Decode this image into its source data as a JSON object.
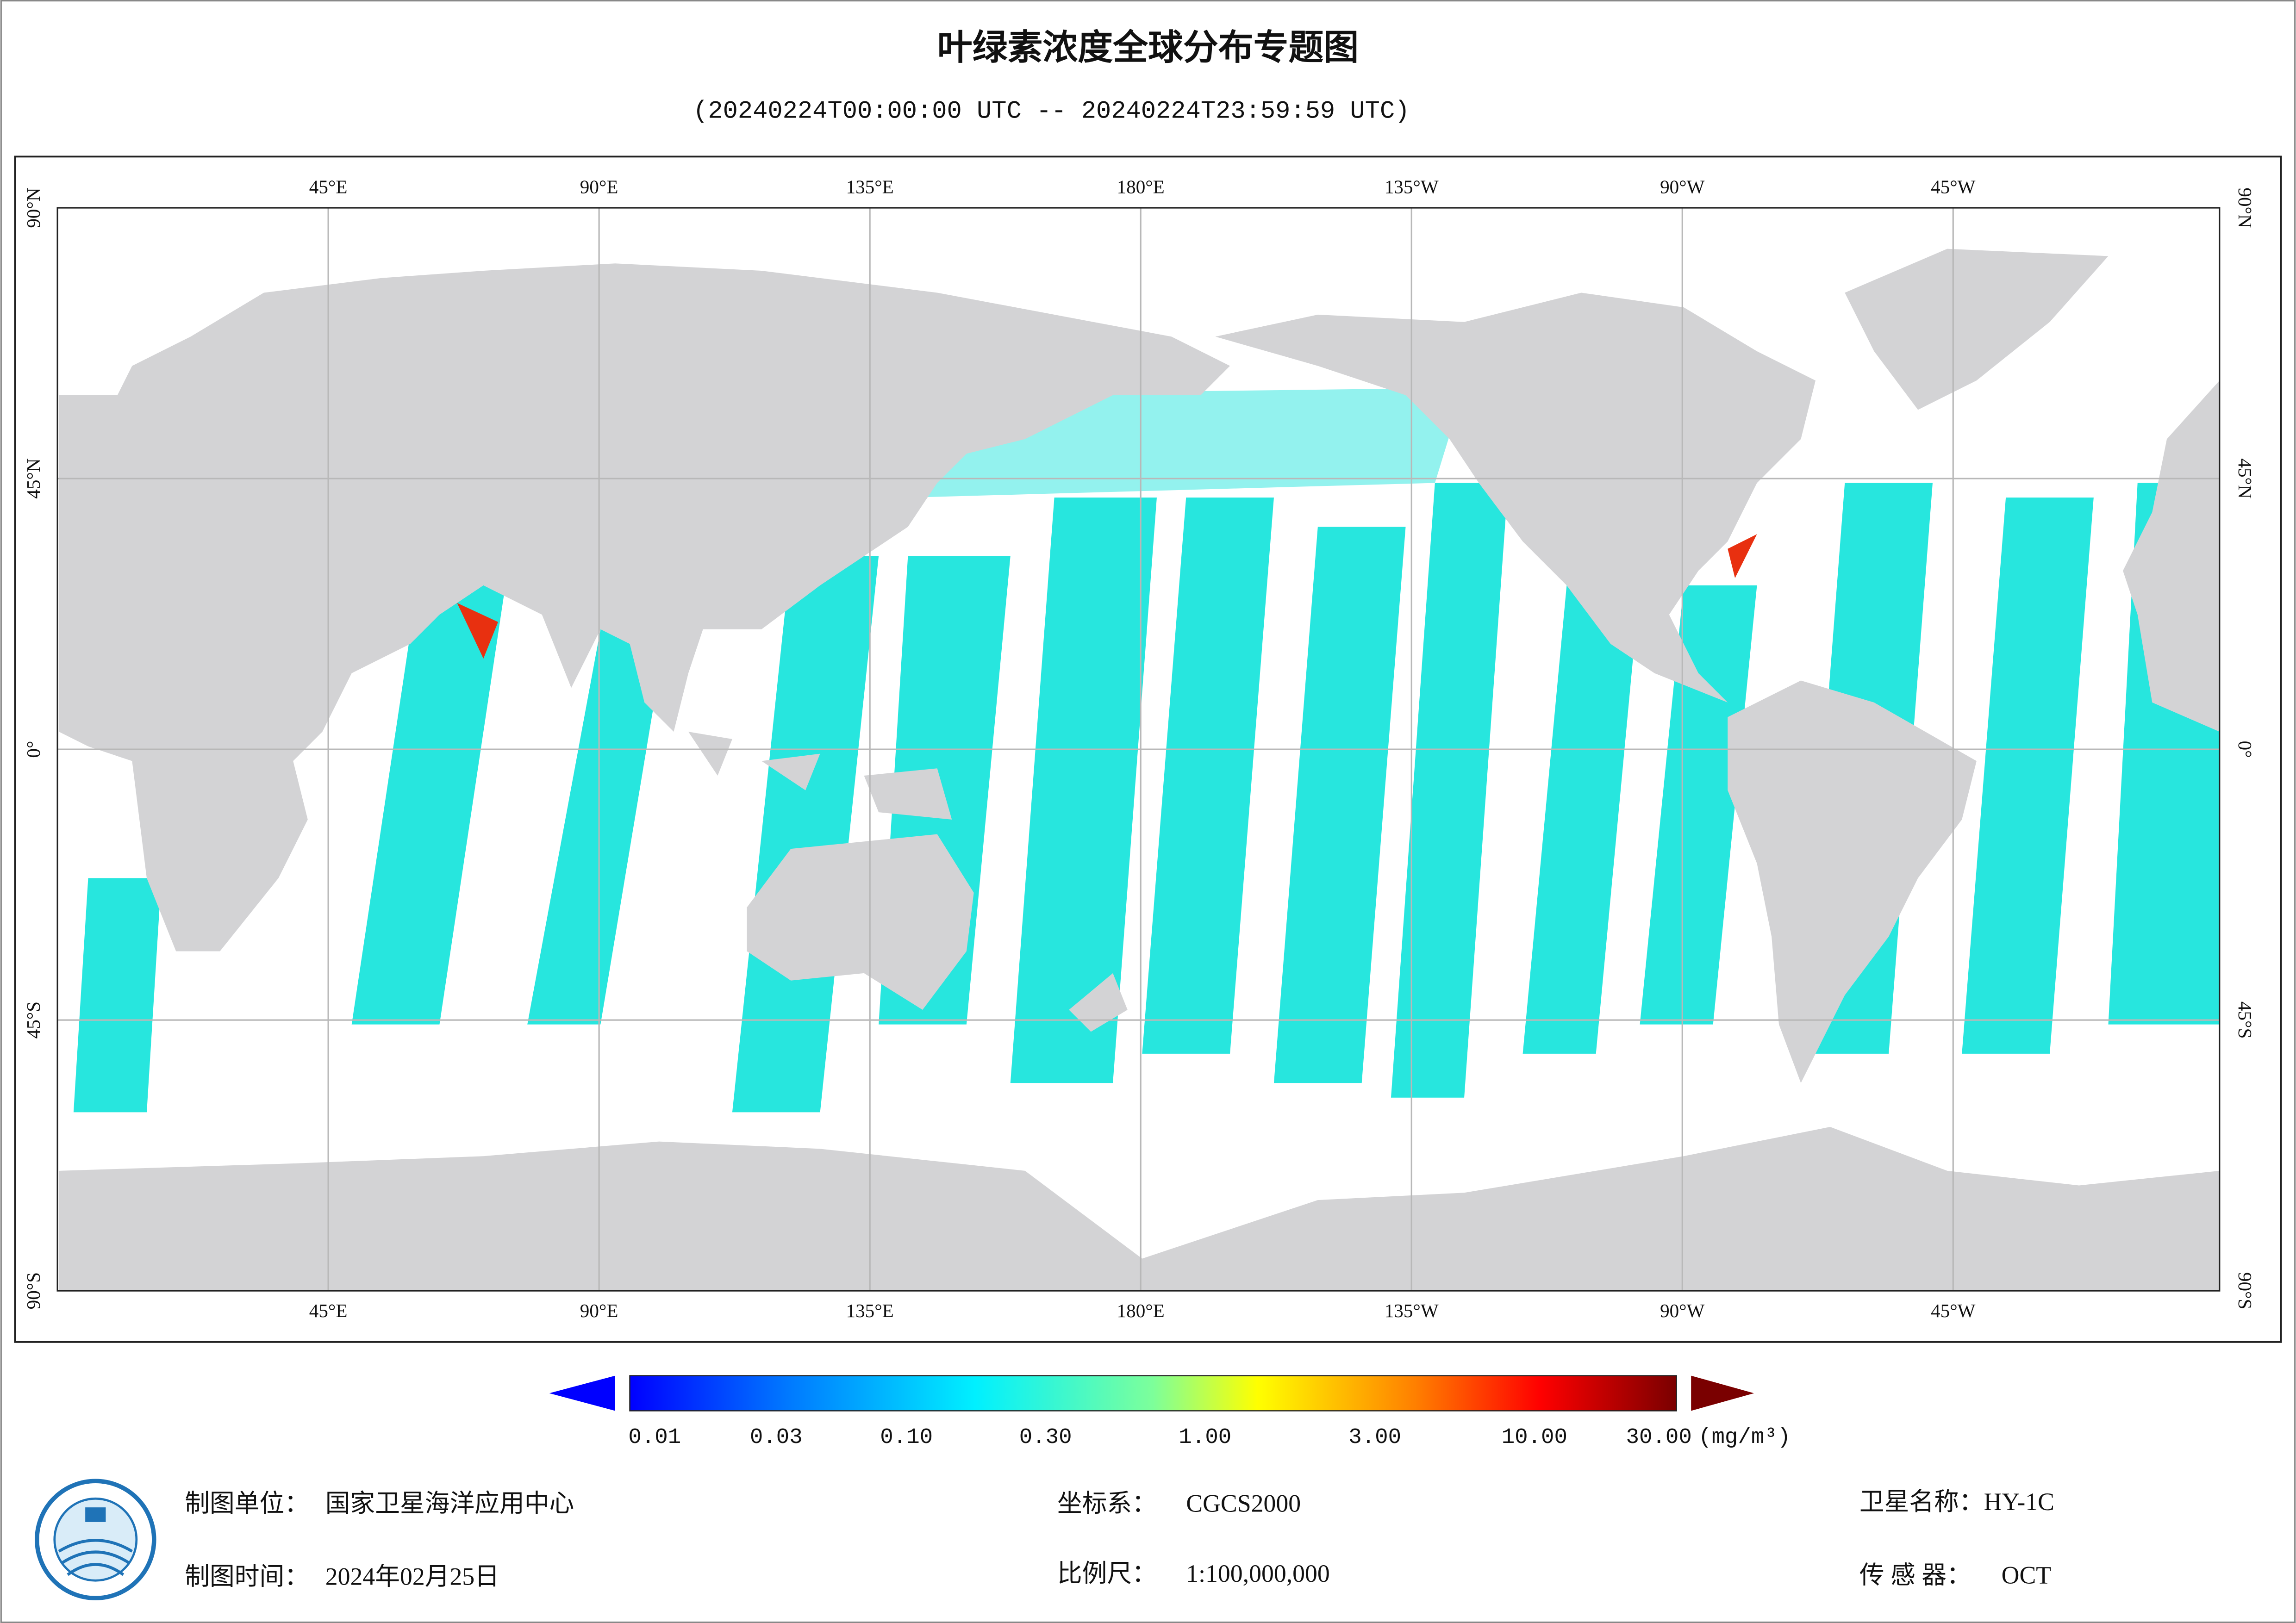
{
  "title": "叶绿素浓度全球分布专题图",
  "subtitle": "(20240224T00:00:00 UTC -- 20240224T23:59:59 UTC)",
  "map": {
    "longitude_labels": [
      "45°E",
      "90°E",
      "135°E",
      "180°E",
      "135°W",
      "90°W",
      "45°W"
    ],
    "latitude_labels": [
      "90°N",
      "45°N",
      "0°",
      "45°S",
      "90°S"
    ]
  },
  "colorbar": {
    "tick_labels": [
      "0.01",
      "0.03",
      "0.10",
      "0.30",
      "1.00",
      "3.00",
      "10.00",
      "30.00"
    ],
    "unit": "(mg/m³)"
  },
  "footer": {
    "producer": {
      "label": "制图单位：",
      "value": "国家卫星海洋应用中心"
    },
    "date": {
      "label": "制图时间：",
      "value": "2024年02月25日"
    },
    "crs": {
      "label": "坐标系：",
      "value": "CGCS2000"
    },
    "scale": {
      "label": "比例尺：",
      "value": "1:100,000,000"
    },
    "satellite": {
      "label": "卫星名称：",
      "value": "HY-1C"
    },
    "sensor": {
      "label": "传 感 器：",
      "value": "OCT"
    }
  }
}
